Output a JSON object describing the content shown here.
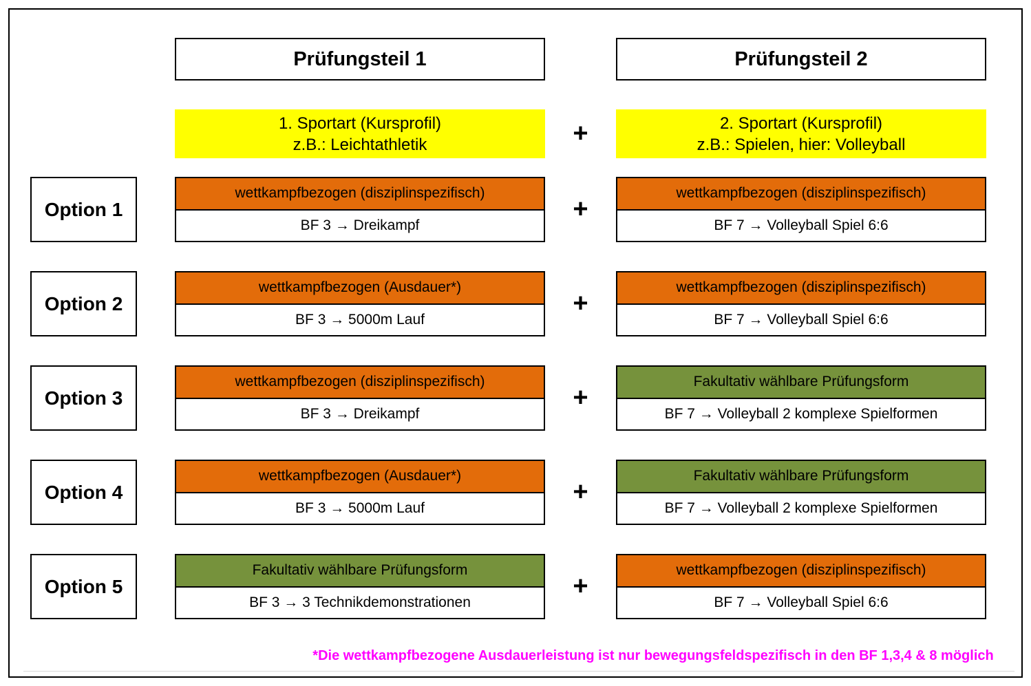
{
  "headers": {
    "part1": "Prüfungsteil 1",
    "part2": "Prüfungsteil 2"
  },
  "plus": "+",
  "sportart": {
    "col1": [
      "1. Sportart (Kursprofil)",
      "z.B.: Leichtathletik"
    ],
    "col2": [
      "2. Sportart (Kursprofil)",
      "z.B.: Spielen, hier: Volleyball"
    ]
  },
  "options": [
    {
      "label": "Option 1",
      "col1": {
        "type": "orange",
        "category": "wettkampfbezogen (disziplinspezifisch)",
        "detail": "BF 3 → Dreikampf"
      },
      "col2": {
        "type": "orange",
        "category": "wettkampfbezogen (disziplinspezifisch)",
        "detail": "BF 7 → Volleyball Spiel 6:6"
      }
    },
    {
      "label": "Option 2",
      "col1": {
        "type": "orange",
        "category": "wettkampfbezogen (Ausdauer*)",
        "detail": "BF 3 → 5000m Lauf"
      },
      "col2": {
        "type": "orange",
        "category": "wettkampfbezogen (disziplinspezifisch)",
        "detail": "BF 7 → Volleyball Spiel 6:6"
      }
    },
    {
      "label": "Option 3",
      "col1": {
        "type": "orange",
        "category": "wettkampfbezogen (disziplinspezifisch)",
        "detail": "BF 3 → Dreikampf"
      },
      "col2": {
        "type": "green",
        "category": "Fakultativ wählbare Prüfungsform",
        "detail": "BF 7 → Volleyball 2 komplexe Spielformen"
      }
    },
    {
      "label": "Option 4",
      "col1": {
        "type": "orange",
        "category": "wettkampfbezogen (Ausdauer*)",
        "detail": "BF 3 → 5000m Lauf"
      },
      "col2": {
        "type": "green",
        "category": "Fakultativ wählbare Prüfungsform",
        "detail": "BF 7 → Volleyball 2 komplexe Spielformen"
      }
    },
    {
      "label": "Option 5",
      "col1": {
        "type": "green",
        "category": "Fakultativ wählbare Prüfungsform",
        "detail": "BF 3 → 3 Technikdemonstrationen"
      },
      "col2": {
        "type": "orange",
        "category": "wettkampfbezogen (disziplinspezifisch)",
        "detail": "BF 7 → Volleyball Spiel 6:6"
      }
    }
  ],
  "footnote": "*Die wettkampfbezogene Ausdauerleistung ist nur bewegungsfeldspezifisch in den BF 1,3,4 & 8 möglich",
  "colors": {
    "orange": "#E36C0A",
    "green": "#76923C",
    "yellow": "#FFFF00",
    "footnote_magenta": "#FF00FF",
    "border": "#000000"
  }
}
